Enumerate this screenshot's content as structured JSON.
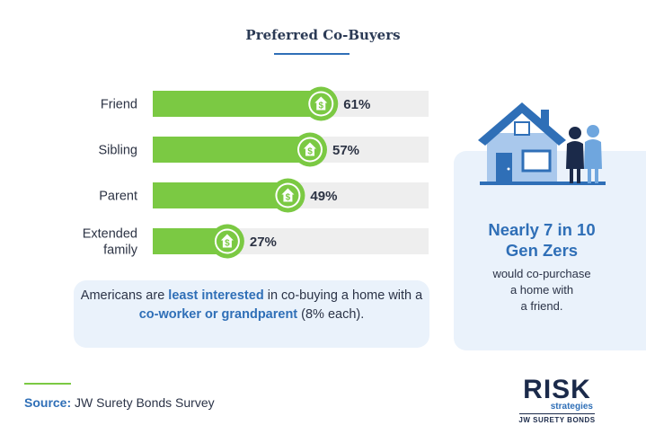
{
  "chart_data": {
    "type": "bar",
    "orientation": "horizontal",
    "title": "Preferred Co-Buyers",
    "categories": [
      "Friend",
      "Sibling",
      "Parent",
      "Extended family"
    ],
    "category_lines": [
      [
        "Friend"
      ],
      [
        "Sibling"
      ],
      [
        "Parent"
      ],
      [
        "Extended",
        "family"
      ]
    ],
    "values": [
      61,
      57,
      49,
      27
    ],
    "value_labels": [
      "61%",
      "57%",
      "49%",
      "27%"
    ],
    "xlim": [
      0,
      100
    ],
    "bar_color": "#7bc943",
    "track_color": "#eeeeee",
    "marker_icon": "house-dollar-icon",
    "grid": false,
    "legend": "none"
  },
  "note": {
    "part1": "Americans are ",
    "highlight1": "least interested",
    "part2": " in co-buying a home with a ",
    "highlight2": "co-worker or grandparent",
    "part3": " (8% each)."
  },
  "side_card": {
    "headline_line1": "Nearly 7 in 10",
    "headline_line2": "Gen Zers",
    "body_line1": "would co-purchase",
    "body_line2": "a home with",
    "body_line3": "a friend.",
    "illustration": "house-with-people-icon"
  },
  "source": {
    "lead": "Source:",
    "text": " JW Surety Bonds Survey"
  },
  "logo": {
    "word": "RISK",
    "sub": "strategies",
    "tag": "JW SURETY BONDS"
  },
  "colors": {
    "accent_blue": "#2f6fb7",
    "accent_green": "#7bc943",
    "navy": "#1b2a4a",
    "panel": "#eaf2fb"
  }
}
